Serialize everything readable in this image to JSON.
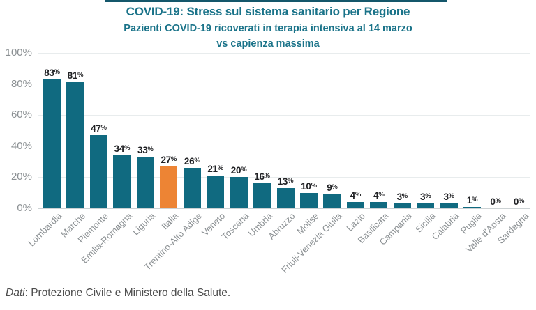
{
  "page": {
    "title": "COVID-19: Stress sul sistema sanitario per Regione",
    "subtitle_line1": "Pazienti COVID-19 ricoverati in terapia intensiva al 14 marzo",
    "subtitle_line2": "vs capienza massima",
    "footer_prefix": "Dati",
    "footer_text": ": Protezione Civile e Ministero della Salute."
  },
  "colors": {
    "strip": "#14576b",
    "title": "#1a7389",
    "bar": "#106a80",
    "highlight": "#ed8434",
    "grid": "#e8eced",
    "baseline": "#ccd2d4",
    "axis": "#8b9093",
    "value": "#202124",
    "footer": "#4d4d4d"
  },
  "chart_data": {
    "type": "bar",
    "title": "COVID-19: Stress sul sistema sanitario per Regione",
    "subtitle": "Pazienti COVID-19 ricoverati in terapia intensiva al 14 marzo vs capienza massima",
    "categories": [
      "Lombardia",
      "Marche",
      "Piemonte",
      "Emilia-Romagna",
      "Liguria",
      "Italia",
      "Trentino-Alto Adige",
      "Veneto",
      "Toscana",
      "Umbria",
      "Abruzzo",
      "Molise",
      "Friuli-Venezia Giulia",
      "Lazio",
      "Basilicata",
      "Campania",
      "Sicilia",
      "Calabria",
      "Puglia",
      "Valle d'Aosta",
      "Sardegna"
    ],
    "values": [
      83,
      81,
      47,
      34,
      33,
      27,
      26,
      21,
      20,
      16,
      13,
      10,
      9,
      4,
      4,
      3,
      3,
      3,
      1,
      0,
      0
    ],
    "value_suffix": "%",
    "highlight_index": 5,
    "highlight_category": "Italia",
    "xlabel": "",
    "ylabel": "",
    "ylim": [
      0,
      100
    ],
    "y_ticks": [
      "100%",
      "80%",
      "60%",
      "40%",
      "20%",
      "0%"
    ],
    "grid": true,
    "legend": false,
    "source": "Dati: Protezione Civile e Ministero della Salute."
  }
}
